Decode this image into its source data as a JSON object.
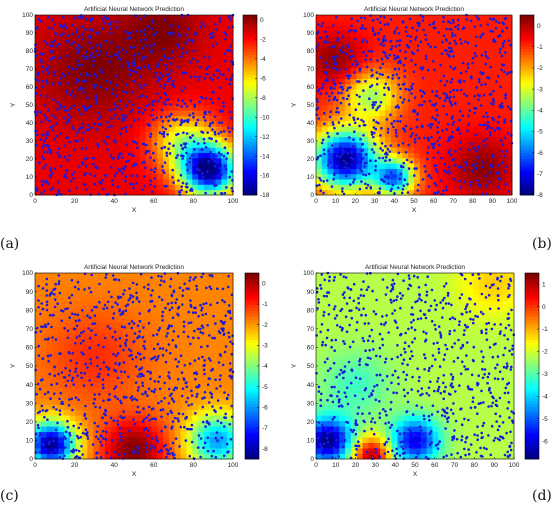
{
  "figure": {
    "captions": [
      "(a)",
      "(b)",
      "(c)",
      "(d)"
    ]
  },
  "chart_data": [
    {
      "type": "heatmap",
      "panel": "(a)",
      "title": "Artificial Neural Network Prediction",
      "xlabel": "X",
      "ylabel": "Y",
      "xlim": [
        0,
        100
      ],
      "ylim": [
        0,
        100
      ],
      "xticks": [
        0,
        20,
        40,
        60,
        80,
        100
      ],
      "yticks": [
        0,
        10,
        20,
        30,
        40,
        50,
        60,
        70,
        80,
        90,
        100
      ],
      "colorbar": {
        "min": -18,
        "max": 0.5,
        "ticks": [
          0,
          -2,
          -4,
          -6,
          -8,
          -10,
          -12,
          -14,
          -16,
          -18
        ],
        "colormap": "jet"
      },
      "field": {
        "background": -1.5,
        "features": [
          {
            "x": 88,
            "y": 14,
            "value": -18,
            "radius": 14
          },
          {
            "x": 75,
            "y": 30,
            "value": -7,
            "radius": 16
          },
          {
            "x": 30,
            "y": 70,
            "value": 0.5,
            "radius": 30
          },
          {
            "x": 65,
            "y": 92,
            "value": 0.3,
            "radius": 20
          }
        ]
      },
      "points": {
        "color": "#1a1adf",
        "count": 900,
        "density": "mostly upper-right, sparser lower-left"
      }
    },
    {
      "type": "heatmap",
      "panel": "(b)",
      "title": "Artificial Neural Network Prediction",
      "xlabel": "X",
      "ylabel": "Y",
      "xlim": [
        0,
        100
      ],
      "ylim": [
        0,
        100
      ],
      "xticks": [
        0,
        10,
        20,
        30,
        40,
        50,
        60,
        70,
        80,
        90,
        100
      ],
      "yticks": [
        0,
        10,
        20,
        30,
        40,
        50,
        60,
        70,
        80,
        90,
        100
      ],
      "colorbar": {
        "min": -8,
        "max": 0.5,
        "ticks": [
          0,
          -1,
          -2,
          -3,
          -4,
          -5,
          -6,
          -7,
          -8
        ],
        "colormap": "jet"
      },
      "field": {
        "background": -0.8,
        "features": [
          {
            "x": 15,
            "y": 20,
            "value": -8,
            "radius": 16
          },
          {
            "x": 40,
            "y": 10,
            "value": -6,
            "radius": 10
          },
          {
            "x": 10,
            "y": 75,
            "value": 0.4,
            "radius": 15
          },
          {
            "x": 85,
            "y": 15,
            "value": 0.4,
            "radius": 18
          },
          {
            "x": 28,
            "y": 55,
            "value": -3.5,
            "radius": 14
          }
        ]
      },
      "points": {
        "color": "#1a1adf",
        "count": 900,
        "density": "dense on left and middle band"
      }
    },
    {
      "type": "heatmap",
      "panel": "(c)",
      "title": "Artificial Neural Network Prediction",
      "xlabel": "X",
      "ylabel": "Y",
      "xlim": [
        0,
        100
      ],
      "ylim": [
        0,
        100
      ],
      "xticks": [
        0,
        20,
        40,
        60,
        80,
        100
      ],
      "yticks": [
        0,
        10,
        20,
        30,
        40,
        50,
        60,
        70,
        80,
        90,
        100
      ],
      "colorbar": {
        "min": -8.5,
        "max": 0.5,
        "ticks": [
          0,
          -1,
          -2,
          -3,
          -4,
          -5,
          -6,
          -7,
          -8
        ],
        "colormap": "jet"
      },
      "field": {
        "background": -1.8,
        "features": [
          {
            "x": 8,
            "y": 8,
            "value": -8.5,
            "radius": 12
          },
          {
            "x": 92,
            "y": 10,
            "value": -6,
            "radius": 14
          },
          {
            "x": 50,
            "y": 5,
            "value": 0.5,
            "radius": 16
          },
          {
            "x": 30,
            "y": 55,
            "value": -1.0,
            "radius": 25
          }
        ]
      },
      "points": {
        "color": "#1a1adf",
        "count": 850,
        "density": "spread, denser at top and right"
      }
    },
    {
      "type": "heatmap",
      "panel": "(d)",
      "title": "Artificial Neural Network Prediction",
      "xlabel": "X",
      "ylabel": "Y",
      "xlim": [
        0,
        100
      ],
      "ylim": [
        0,
        100
      ],
      "xticks": [
        0,
        10,
        20,
        30,
        40,
        50,
        60,
        70,
        80,
        90,
        100
      ],
      "yticks": [
        0,
        10,
        20,
        30,
        40,
        50,
        60,
        70,
        80,
        90,
        100
      ],
      "colorbar": {
        "min": -6.8,
        "max": 1.5,
        "ticks": [
          1,
          0,
          -1,
          -2,
          -3,
          -4,
          -5,
          -6
        ],
        "colormap": "jet"
      },
      "field": {
        "background": -2.2,
        "features": [
          {
            "x": 6,
            "y": 10,
            "value": -6.8,
            "radius": 12
          },
          {
            "x": 50,
            "y": 10,
            "value": -6,
            "radius": 12
          },
          {
            "x": 28,
            "y": 2,
            "value": 1.2,
            "radius": 10
          },
          {
            "x": 90,
            "y": 95,
            "value": -1.2,
            "radius": 18
          },
          {
            "x": 20,
            "y": 40,
            "value": -3.2,
            "radius": 18
          }
        ]
      },
      "points": {
        "color": "#1a1adf",
        "count": 750,
        "density": "left-center and middle denser"
      }
    }
  ]
}
